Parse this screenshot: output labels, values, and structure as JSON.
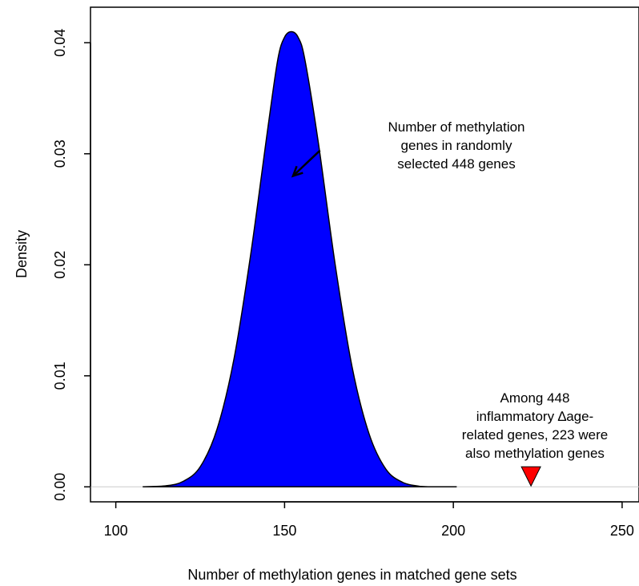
{
  "chart_data": {
    "type": "area",
    "title": "",
    "xlabel": "Number of methylation genes in matched gene sets",
    "ylabel": "Density",
    "xlim": [
      92.5,
      255
    ],
    "ylim": [
      -0.00135,
      0.0432
    ],
    "x_ticks": [
      100,
      150,
      200,
      250
    ],
    "y_ticks": [
      0.0,
      0.01,
      0.02,
      0.03,
      0.04
    ],
    "x_tick_labels": [
      "100",
      "150",
      "200",
      "250"
    ],
    "y_tick_labels": [
      "0.00",
      "0.01",
      "0.02",
      "0.03",
      "0.04"
    ],
    "grid": false,
    "legend": "none",
    "series": [
      {
        "x": [
          108,
          115,
          120,
          125,
          130,
          135,
          140,
          145,
          148,
          150,
          152,
          154,
          156,
          160,
          165,
          170,
          175,
          180,
          185,
          190,
          193
        ],
        "y": [
          0.0,
          0.0001,
          0.0005,
          0.0018,
          0.0052,
          0.0115,
          0.021,
          0.0322,
          0.0385,
          0.0405,
          0.041,
          0.0405,
          0.0385,
          0.031,
          0.02,
          0.0108,
          0.0048,
          0.0016,
          0.0004,
          5e-05,
          0.0
        ],
        "baseline_x": [
          108,
          201
        ],
        "fill_color": "#0000ff",
        "line_color": "#000000"
      }
    ],
    "zero_line_color": "#cccccc",
    "marker": {
      "shape": "triangle-down",
      "x": 223,
      "y": 0.0008,
      "color": "#ff0000"
    },
    "annotations": [
      {
        "lines": [
          "Number of methylation",
          "genes in randomly",
          "selected 448 genes"
        ],
        "arrow_from": [
          160.5,
          0.0303
        ],
        "arrow_to": [
          152.5,
          0.028
        ]
      },
      {
        "lines": [
          "Among 448",
          "inflammatory ∆age-",
          "related genes, 223 were",
          "also  methylation genes"
        ]
      }
    ]
  }
}
